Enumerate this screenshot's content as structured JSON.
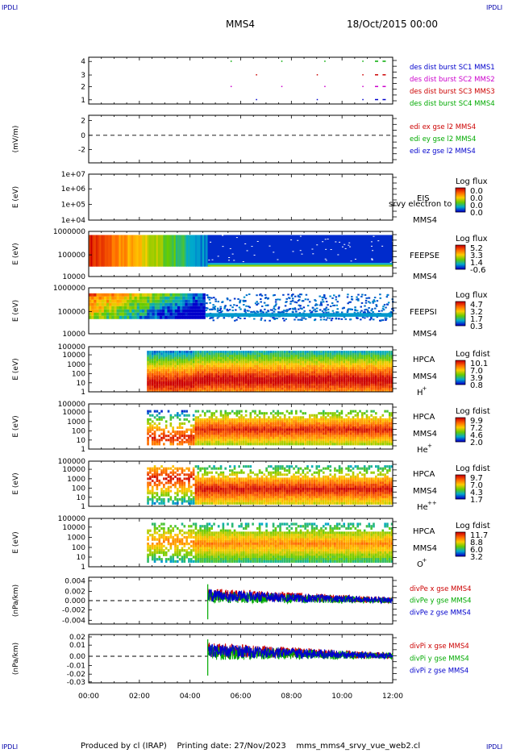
{
  "corner_label": "IPDLI",
  "header": {
    "spacecraft": "MMS4",
    "date": "18/Oct/2015 00:00"
  },
  "footer": {
    "text": "Produced by cl (IRAP)    Printing date: 27/Nov/2023    mms_mms4_srvy_vue_web2.cl"
  },
  "time_axis": [
    "00:00",
    "02:00",
    "04:00",
    "06:00",
    "08:00",
    "10:00",
    "12:00"
  ],
  "panels": {
    "burst": {
      "yticks": [
        "4",
        "3",
        "2",
        "1"
      ],
      "legend": [
        {
          "text": "des dist burst SC1 MMS1",
          "color": "#0000cc"
        },
        {
          "text": "des dist burst SC2 MMS2",
          "color": "#cc00cc"
        },
        {
          "text": "des dist burst SC3 MMS3",
          "color": "#cc0000"
        },
        {
          "text": "des dist burst SC4 MMS4",
          "color": "#00aa00"
        }
      ]
    },
    "edi": {
      "ylabel": "(mV/m)",
      "yticks": [
        "2",
        "0",
        "-2"
      ],
      "legend": [
        {
          "text": "edi ex gse l2 MMS4",
          "color": "#cc0000"
        },
        {
          "text": "edi ey gse l2 MMS4",
          "color": "#00aa00"
        },
        {
          "text": "edi ez gse l2 MMS4",
          "color": "#0000cc"
        }
      ]
    },
    "eis": {
      "ylabel": "E (eV)",
      "yticks": [
        "1e+07",
        "1e+06",
        "1e+05",
        "1e+04"
      ],
      "instrument": "EIS",
      "subtitle": "srvy electron to",
      "sc": "MMS4",
      "cb_title": "Log flux",
      "cb_ticks": [
        "0.0",
        "0.0",
        "0.0",
        "0.0"
      ]
    },
    "feepse": {
      "ylabel": "E (eV)",
      "yticks": [
        "1000000",
        "100000",
        "10000"
      ],
      "instrument": "FEEPSE",
      "sc": "MMS4",
      "cb_title": "Log flux",
      "cb_ticks": [
        "5.2",
        "3.3",
        "1.4",
        "-0.6"
      ]
    },
    "feepsi": {
      "ylabel": "E (eV)",
      "yticks": [
        "1000000",
        "100000",
        "10000"
      ],
      "instrument": "FEEPSI",
      "sc": "MMS4",
      "cb_title": "Log flux",
      "cb_ticks": [
        "4.7",
        "3.2",
        "1.7",
        "0.3"
      ]
    },
    "hpca_h": {
      "ylabel": "E (eV)",
      "yticks": [
        "100000",
        "10000",
        "1000",
        "100",
        "10",
        "1"
      ],
      "instrument": "HPCA",
      "sc": "MMS4",
      "species": "H",
      "charge": "+",
      "cb_title": "Log fdist",
      "cb_ticks": [
        "10.1",
        "7.0",
        "3.9",
        "0.8"
      ]
    },
    "hpca_he": {
      "ylabel": "E (eV)",
      "yticks": [
        "100000",
        "10000",
        "1000",
        "100",
        "10",
        "1"
      ],
      "instrument": "HPCA",
      "sc": "MMS4",
      "species": "He",
      "charge": "+",
      "cb_title": "Log fdist",
      "cb_ticks": [
        "9.9",
        "7.2",
        "4.6",
        "2.0"
      ]
    },
    "hpca_he2": {
      "ylabel": "E (eV)",
      "yticks": [
        "100000",
        "10000",
        "1000",
        "100",
        "10",
        "1"
      ],
      "instrument": "HPCA",
      "sc": "MMS4",
      "species": "He",
      "charge": "++",
      "cb_title": "Log fdist",
      "cb_ticks": [
        "9.7",
        "7.0",
        "4.3",
        "1.7"
      ]
    },
    "hpca_o": {
      "ylabel": "E (eV)",
      "yticks": [
        "100000",
        "10000",
        "1000",
        "100",
        "10",
        "1"
      ],
      "instrument": "HPCA",
      "sc": "MMS4",
      "species": "O",
      "charge": "+",
      "cb_title": "Log fdist",
      "cb_ticks": [
        "11.7",
        "8.8",
        "6.0",
        "3.2"
      ]
    },
    "divpe": {
      "ylabel": "(nPa/km)",
      "yticks": [
        "0.004",
        "0.002",
        "0.000",
        "-0.002",
        "-0.004"
      ],
      "legend": [
        {
          "text": "divPe x gse MMS4",
          "color": "#cc0000"
        },
        {
          "text": "divPe y gse MMS4",
          "color": "#00aa00"
        },
        {
          "text": "divPe z gse MMS4",
          "color": "#0000cc"
        }
      ]
    },
    "divpi": {
      "ylabel": "(nPa/km)",
      "yticks": [
        "0.02",
        "0.01",
        "0.00",
        "-0.01",
        "-0.02",
        "-0.03"
      ],
      "legend": [
        {
          "text": "divPi x gse MMS4",
          "color": "#cc0000"
        },
        {
          "text": "divPi y gse MMS4",
          "color": "#00aa00"
        },
        {
          "text": "divPi z gse MMS4",
          "color": "#0000cc"
        }
      ]
    }
  },
  "chart_data": {
    "type": "heatmap",
    "x_range": [
      "00:00",
      "12:00"
    ],
    "time_ticks": [
      "00:00",
      "02:00",
      "04:00",
      "06:00",
      "08:00",
      "10:00",
      "12:00"
    ],
    "hpca_onset_hours": 2.3,
    "edi_ylim": [
      -3,
      3
    ],
    "burst_ylim": [
      0.5,
      4.5
    ],
    "divpe_ylim": [
      -0.005,
      0.005
    ],
    "divpi_ylim": [
      -0.03,
      0.025
    ],
    "divp_onset_hours": 4.7,
    "colorbar": [
      "#cc0000",
      "#ff6600",
      "#ffcc00",
      "#66cc00",
      "#00aacc",
      "#0000cc"
    ]
  }
}
